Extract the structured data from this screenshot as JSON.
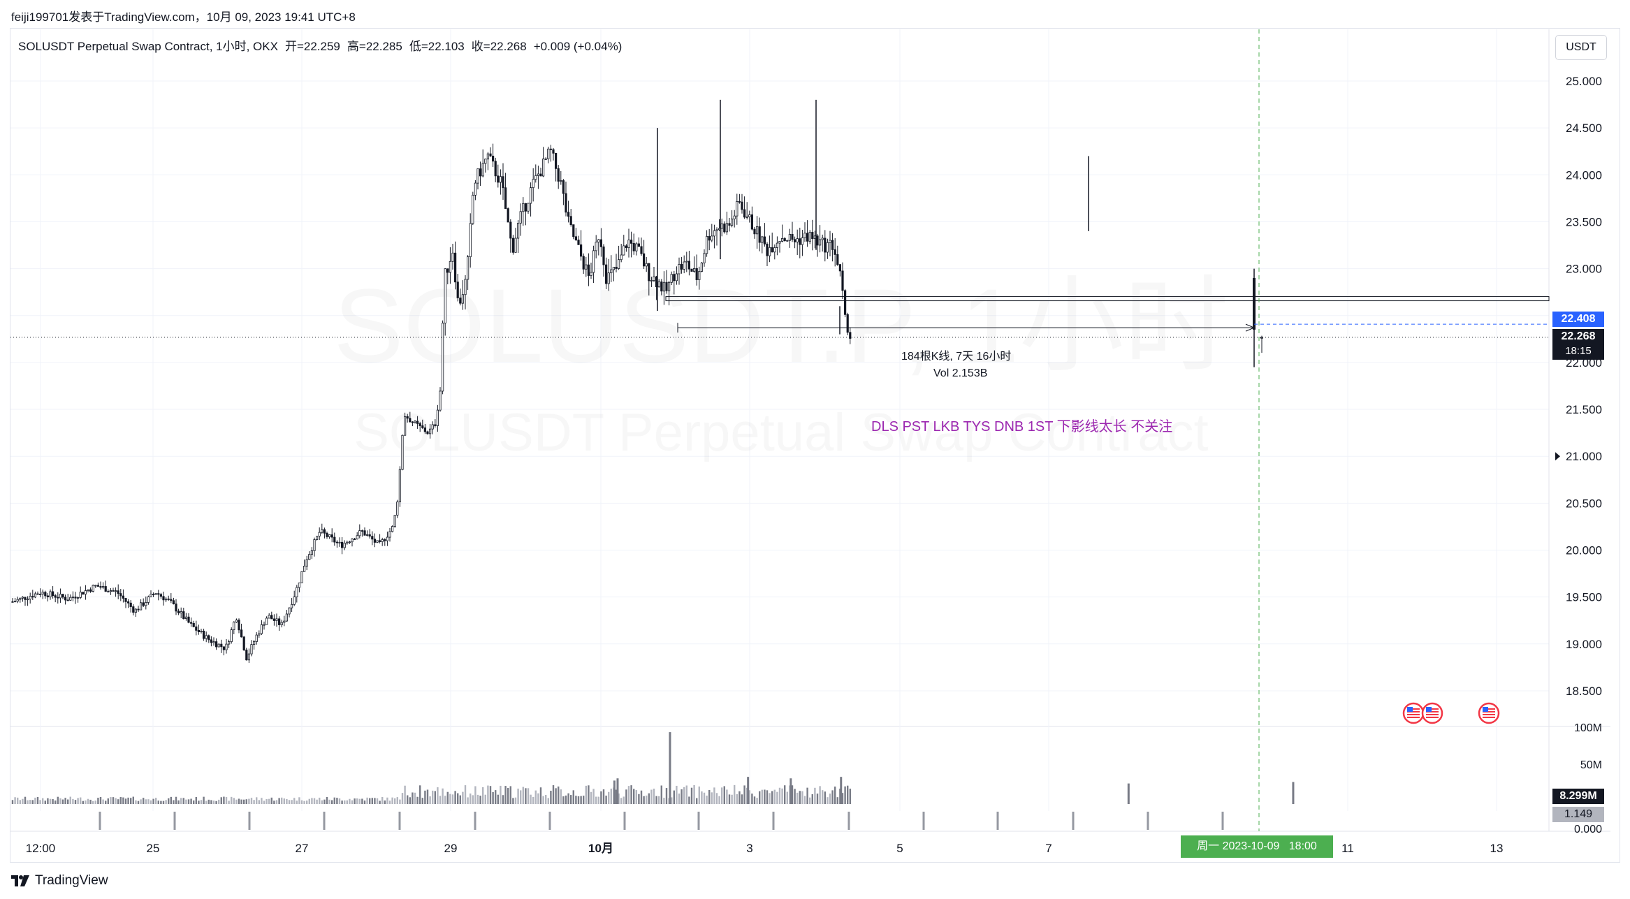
{
  "header": {
    "credit": "feiji199701发表于TradingView.com，10月 09, 2023 19:41 UTC+8"
  },
  "legend": {
    "symbol": "SOLUSDT Perpetual Swap Contract, 1小时, OKX",
    "open": "开=22.259",
    "high": "高=22.285",
    "low": "低=22.103",
    "close": "收=22.268",
    "change": "+0.009 (+0.04%)"
  },
  "currency_button": "USDT",
  "watermark": {
    "line1": "SOLUSDT.P, 1小时",
    "line2": "SOLUSDT Perpetual Swap Contract"
  },
  "measure": {
    "bars_text": "184根K线, 7天 16小时",
    "vol_text": "Vol 2.153B"
  },
  "annotation": "DLS PST LKB TYS DNB 1ST 下影线太长 不关注",
  "price_tags": {
    "line_price": "22.408",
    "last_price": "22.268",
    "countdown": "18:15"
  },
  "volume_tags": {
    "last_volume": "8.299M",
    "secondary": "1.149"
  },
  "crosshair_time": "周一 2023-10-09   18:00",
  "footer": {
    "brand": "TradingView"
  },
  "colors": {
    "candle": "#131722",
    "volume": "#787b86",
    "annotation": "#9c27b0",
    "hline_blue": "#2962ff",
    "crosshair_green": "#4caf50",
    "time_tag": "#4caf50"
  },
  "chart_data": {
    "type": "candlestick",
    "symbol": "SOLUSDT.P",
    "interval": "1小时",
    "y_ticks": [
      "25.000",
      "24.500",
      "24.000",
      "23.500",
      "23.000",
      "22.500",
      "22.000",
      "21.500",
      "21.000",
      "20.500",
      "20.000",
      "19.500",
      "19.000",
      "18.500"
    ],
    "x_ticks": [
      "12:00",
      "25",
      "27",
      "29",
      "10月",
      "3",
      "5",
      "7",
      "11",
      "13"
    ],
    "volume_ticks": [
      "100M",
      "50M",
      "0.000"
    ],
    "ylim": [
      18.2,
      25.25
    ],
    "volume_ylim": [
      0,
      100
    ],
    "horizontal_lines": [
      22.68,
      22.408,
      22.268
    ],
    "hourly_path": [
      {
        "x": 0,
        "y": 19.45
      },
      {
        "x": 40,
        "y": 19.55
      },
      {
        "x": 80,
        "y": 19.48
      },
      {
        "x": 120,
        "y": 19.62
      },
      {
        "x": 150,
        "y": 19.55
      },
      {
        "x": 175,
        "y": 19.35
      },
      {
        "x": 205,
        "y": 19.55
      },
      {
        "x": 225,
        "y": 19.45
      },
      {
        "x": 255,
        "y": 19.2
      },
      {
        "x": 280,
        "y": 19.05
      },
      {
        "x": 305,
        "y": 18.95
      },
      {
        "x": 320,
        "y": 19.3
      },
      {
        "x": 335,
        "y": 18.85
      },
      {
        "x": 350,
        "y": 19.1
      },
      {
        "x": 365,
        "y": 19.3
      },
      {
        "x": 385,
        "y": 19.2
      },
      {
        "x": 405,
        "y": 19.55
      },
      {
        "x": 420,
        "y": 19.9
      },
      {
        "x": 440,
        "y": 20.2
      },
      {
        "x": 470,
        "y": 20.05
      },
      {
        "x": 500,
        "y": 20.2
      },
      {
        "x": 525,
        "y": 20.05
      },
      {
        "x": 545,
        "y": 20.25
      },
      {
        "x": 552,
        "y": 20.6
      },
      {
        "x": 560,
        "y": 21.45
      },
      {
        "x": 575,
        "y": 21.35
      },
      {
        "x": 595,
        "y": 21.25
      },
      {
        "x": 605,
        "y": 21.35
      },
      {
        "x": 612,
        "y": 21.7
      },
      {
        "x": 618,
        "y": 22.9
      },
      {
        "x": 630,
        "y": 23.2
      },
      {
        "x": 638,
        "y": 22.6
      },
      {
        "x": 650,
        "y": 22.9
      },
      {
        "x": 660,
        "y": 23.9
      },
      {
        "x": 680,
        "y": 24.2
      },
      {
        "x": 700,
        "y": 23.9
      },
      {
        "x": 715,
        "y": 23.2
      },
      {
        "x": 725,
        "y": 23.5
      },
      {
        "x": 745,
        "y": 23.9
      },
      {
        "x": 770,
        "y": 24.25
      },
      {
        "x": 785,
        "y": 23.9
      },
      {
        "x": 795,
        "y": 23.5
      },
      {
        "x": 810,
        "y": 23.2
      },
      {
        "x": 825,
        "y": 22.9
      },
      {
        "x": 840,
        "y": 23.4
      },
      {
        "x": 850,
        "y": 22.9
      },
      {
        "x": 865,
        "y": 23.0
      },
      {
        "x": 880,
        "y": 23.3
      },
      {
        "x": 895,
        "y": 23.2
      },
      {
        "x": 910,
        "y": 22.95
      },
      {
        "x": 925,
        "y": 22.85
      },
      {
        "x": 935,
        "y": 22.75
      },
      {
        "x": 950,
        "y": 23.0
      },
      {
        "x": 965,
        "y": 23.05
      },
      {
        "x": 980,
        "y": 22.9
      },
      {
        "x": 995,
        "y": 23.35
      },
      {
        "x": 1010,
        "y": 23.45
      },
      {
        "x": 1025,
        "y": 23.45
      },
      {
        "x": 1040,
        "y": 23.7
      },
      {
        "x": 1060,
        "y": 23.45
      },
      {
        "x": 1080,
        "y": 23.2
      },
      {
        "x": 1100,
        "y": 23.35
      },
      {
        "x": 1120,
        "y": 23.3
      },
      {
        "x": 1140,
        "y": 23.35
      },
      {
        "x": 1160,
        "y": 23.25
      },
      {
        "x": 1175,
        "y": 23.25
      },
      {
        "x": 1185,
        "y": 22.9
      },
      {
        "x": 1192,
        "y": 22.45
      },
      {
        "x": 1198,
        "y": 22.27
      }
    ],
    "last_candle": {
      "open": 22.259,
      "high": 22.285,
      "low": 22.103,
      "close": 22.268
    },
    "volume_spikes_m": [
      {
        "x": 615,
        "v": 98
      },
      {
        "x": 563,
        "v": 32
      },
      {
        "x": 566,
        "v": 35
      },
      {
        "x": 775,
        "v": 37
      },
      {
        "x": 688,
        "v": 37
      },
      {
        "x": 728,
        "v": 35
      },
      {
        "x": 1044,
        "v": 28
      },
      {
        "x": 1198,
        "v": 30
      }
    ]
  }
}
